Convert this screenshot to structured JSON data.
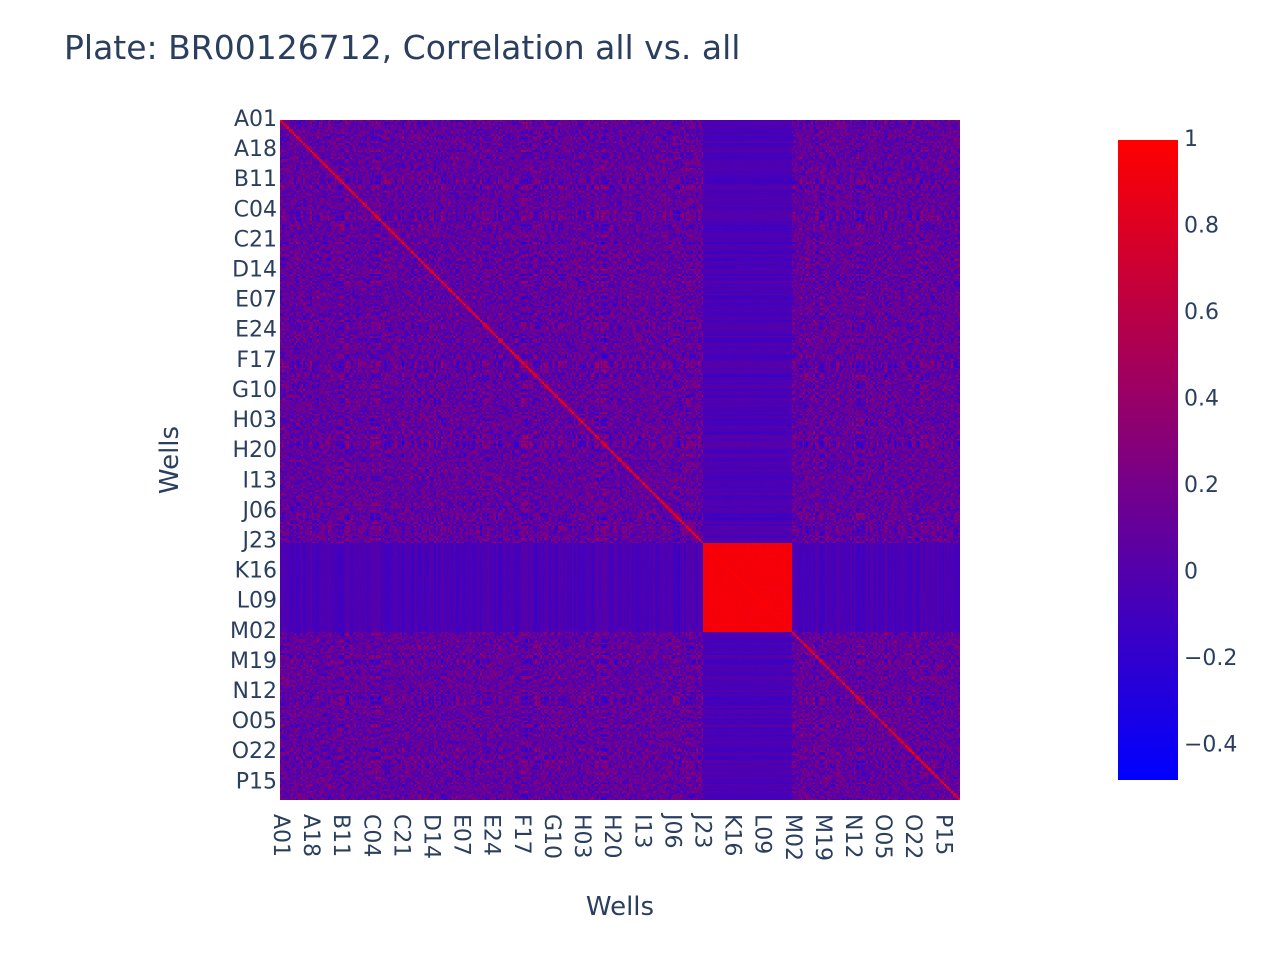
{
  "title": "Plate: BR00126712, Correlation all vs. all",
  "chart_data": {
    "type": "heatmap",
    "title": "Plate: BR00126712, Correlation all vs. all",
    "xlabel": "Wells",
    "ylabel": "Wells",
    "x_tick_labels": [
      "A01",
      "A18",
      "B11",
      "C04",
      "C21",
      "D14",
      "E07",
      "E24",
      "F17",
      "G10",
      "H03",
      "H20",
      "I13",
      "J06",
      "J23",
      "K16",
      "L09",
      "M02",
      "M19",
      "N12",
      "O05",
      "O22",
      "P15"
    ],
    "y_tick_labels": [
      "A01",
      "A18",
      "B11",
      "C04",
      "C21",
      "D14",
      "E07",
      "E24",
      "F17",
      "G10",
      "H03",
      "H20",
      "I13",
      "J06",
      "J23",
      "K16",
      "L09",
      "M02",
      "M19",
      "N12",
      "O05",
      "O22",
      "P15"
    ],
    "matrix_size": 384,
    "tick_step": 17,
    "zrange": [
      -0.48,
      1
    ],
    "colorscale": [
      "#0000ff",
      "#ff0000"
    ],
    "colorbar_ticks": [
      {
        "value": 1,
        "label": "1"
      },
      {
        "value": 0.8,
        "label": "0.8"
      },
      {
        "value": 0.6,
        "label": "0.6"
      },
      {
        "value": 0.4,
        "label": "0.4"
      },
      {
        "value": 0.2,
        "label": "0.2"
      },
      {
        "value": 0,
        "label": "0"
      },
      {
        "value": -0.2,
        "label": "−0.2"
      },
      {
        "value": -0.4,
        "label": "−0.4"
      }
    ],
    "diagonal_value": 1,
    "high_correlation_block": {
      "from_well": "J24",
      "to_well": "M01",
      "value": 0.97
    },
    "block_background_value": -0.05,
    "background_mean_value": 0.08
  }
}
